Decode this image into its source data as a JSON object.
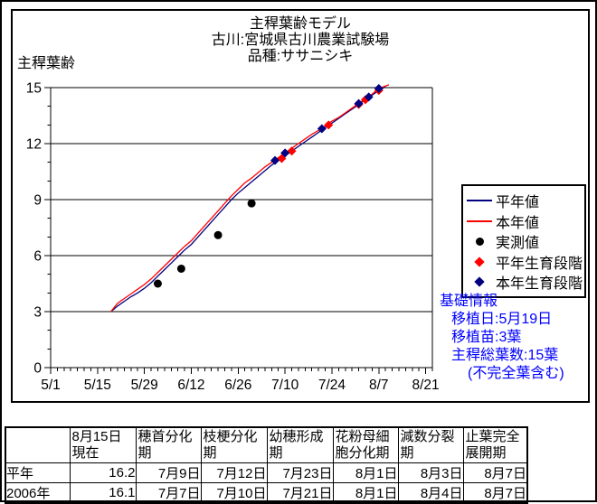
{
  "chart": {
    "title_lines": [
      "主稈葉齢モデル",
      "古川:宮城県古川農業試験場",
      "品種:ササニシキ"
    ],
    "y_axis_label": "主稈葉齢",
    "legend": [
      {
        "label": "平年値",
        "marker": "line",
        "color": "#000080"
      },
      {
        "label": "本年値",
        "marker": "line",
        "color": "#ff0000"
      },
      {
        "label": "実測値",
        "marker": "circle",
        "color": "#000000"
      },
      {
        "label": "平年生育段階",
        "marker": "diamond",
        "color": "#ff0000"
      },
      {
        "label": "本年生育段階",
        "marker": "diamond",
        "color": "#000080"
      }
    ],
    "info_box": {
      "text_color": "#0000ff",
      "lines": [
        "基礎情報",
        "移植日:5月19日",
        "移植苗:3葉",
        "主稈総葉数:15葉",
        "(不完全葉含む)"
      ]
    }
  },
  "chart_data": {
    "type": "line",
    "title": "主稈葉齢モデル",
    "ylabel": "主稈葉齢",
    "ylim": [
      0,
      15
    ],
    "y_ticks": [
      0,
      3,
      6,
      9,
      12,
      15
    ],
    "x_tick_labels": [
      "5/1",
      "5/15",
      "5/29",
      "6/12",
      "6/26",
      "7/10",
      "7/24",
      "8/7",
      "8/21"
    ],
    "x_major_every_days": 14,
    "x_minor_every_days": 2,
    "grid": "horizontal",
    "legend_position": "right",
    "series": [
      {
        "name": "平年値",
        "type": "line",
        "color": "#000080",
        "points": [
          [
            "5/19",
            3.0
          ],
          [
            "5/21",
            3.3
          ],
          [
            "5/23",
            3.55
          ],
          [
            "5/25",
            3.8
          ],
          [
            "5/27",
            4.0
          ],
          [
            "5/29",
            4.25
          ],
          [
            "5/31",
            4.55
          ],
          [
            "6/2",
            4.9
          ],
          [
            "6/4",
            5.25
          ],
          [
            "6/6",
            5.6
          ],
          [
            "6/8",
            5.95
          ],
          [
            "6/10",
            6.3
          ],
          [
            "6/12",
            6.6
          ],
          [
            "6/14",
            7.0
          ],
          [
            "6/16",
            7.4
          ],
          [
            "6/18",
            7.8
          ],
          [
            "6/20",
            8.2
          ],
          [
            "6/22",
            8.6
          ],
          [
            "6/24",
            9.0
          ],
          [
            "6/26",
            9.35
          ],
          [
            "6/28",
            9.65
          ],
          [
            "6/30",
            9.95
          ],
          [
            "7/2",
            10.25
          ],
          [
            "7/4",
            10.55
          ],
          [
            "7/6",
            10.85
          ],
          [
            "7/8",
            11.1
          ],
          [
            "7/10",
            11.35
          ],
          [
            "7/12",
            11.6
          ],
          [
            "7/14",
            11.85
          ],
          [
            "7/16",
            12.1
          ],
          [
            "7/18",
            12.35
          ],
          [
            "7/20",
            12.6
          ],
          [
            "7/22",
            12.85
          ],
          [
            "7/24",
            13.1
          ],
          [
            "7/26",
            13.35
          ],
          [
            "7/28",
            13.6
          ],
          [
            "7/30",
            13.85
          ],
          [
            "8/1",
            14.1
          ],
          [
            "8/3",
            14.35
          ],
          [
            "8/5",
            14.6
          ],
          [
            "8/7",
            14.85
          ],
          [
            "8/9",
            15.05
          ]
        ]
      },
      {
        "name": "本年値",
        "type": "line",
        "color": "#ff0000",
        "points": [
          [
            "5/19",
            3.0
          ],
          [
            "5/21",
            3.45
          ],
          [
            "5/23",
            3.7
          ],
          [
            "5/25",
            3.95
          ],
          [
            "5/27",
            4.2
          ],
          [
            "5/29",
            4.45
          ],
          [
            "5/31",
            4.75
          ],
          [
            "6/2",
            5.1
          ],
          [
            "6/4",
            5.45
          ],
          [
            "6/6",
            5.8
          ],
          [
            "6/8",
            6.15
          ],
          [
            "6/10",
            6.5
          ],
          [
            "6/12",
            6.8
          ],
          [
            "6/14",
            7.2
          ],
          [
            "6/16",
            7.6
          ],
          [
            "6/18",
            8.0
          ],
          [
            "6/20",
            8.4
          ],
          [
            "6/22",
            8.8
          ],
          [
            "6/24",
            9.2
          ],
          [
            "6/26",
            9.55
          ],
          [
            "6/28",
            9.9
          ],
          [
            "6/30",
            10.15
          ],
          [
            "7/2",
            10.45
          ],
          [
            "7/4",
            10.75
          ],
          [
            "7/6",
            11.0
          ],
          [
            "7/8",
            11.25
          ],
          [
            "7/10",
            11.5
          ],
          [
            "7/12",
            11.75
          ],
          [
            "7/14",
            12.0
          ],
          [
            "7/16",
            12.25
          ],
          [
            "7/18",
            12.5
          ],
          [
            "7/20",
            12.7
          ],
          [
            "7/22",
            12.95
          ],
          [
            "7/24",
            13.2
          ],
          [
            "7/26",
            13.4
          ],
          [
            "7/28",
            13.65
          ],
          [
            "7/30",
            13.9
          ],
          [
            "8/1",
            14.15
          ],
          [
            "8/3",
            14.4
          ],
          [
            "8/5",
            14.65
          ],
          [
            "8/7",
            14.95
          ],
          [
            "8/10",
            15.15
          ]
        ]
      },
      {
        "name": "実測値",
        "type": "scatter",
        "marker": "circle",
        "color": "#000000",
        "points": [
          [
            "6/2",
            4.5
          ],
          [
            "6/9",
            5.3
          ],
          [
            "6/20",
            7.1
          ],
          [
            "6/30",
            8.8
          ]
        ]
      },
      {
        "name": "平年生育段階",
        "type": "scatter",
        "marker": "diamond",
        "color": "#ff0000",
        "points": [
          [
            "7/9",
            11.2
          ],
          [
            "7/12",
            11.6
          ],
          [
            "7/23",
            13.0
          ],
          [
            "8/1",
            14.1
          ],
          [
            "8/3",
            14.35
          ],
          [
            "8/7",
            14.85
          ]
        ]
      },
      {
        "name": "本年生育段階",
        "type": "scatter",
        "marker": "diamond",
        "color": "#000080",
        "points": [
          [
            "7/7",
            11.1
          ],
          [
            "7/10",
            11.5
          ],
          [
            "7/21",
            12.8
          ],
          [
            "8/1",
            14.15
          ],
          [
            "8/4",
            14.5
          ],
          [
            "8/7",
            14.95
          ]
        ]
      }
    ]
  },
  "table": {
    "headers": [
      "",
      "8月15日現在",
      "穂首分化期",
      "枝梗分化期",
      "幼穂形成期",
      "花粉母細胞分化期",
      "減数分裂期",
      "止葉完全展開期"
    ],
    "rows": [
      {
        "label": "平年",
        "values": [
          "16.2",
          "7月9日",
          "7月12日",
          "7月23日",
          "8月1日",
          "8月3日",
          "8月7日"
        ]
      },
      {
        "label": "2006年",
        "values": [
          "16.1",
          "7月7日",
          "7月10日",
          "7月21日",
          "8月1日",
          "8月4日",
          "8月7日"
        ]
      }
    ]
  }
}
